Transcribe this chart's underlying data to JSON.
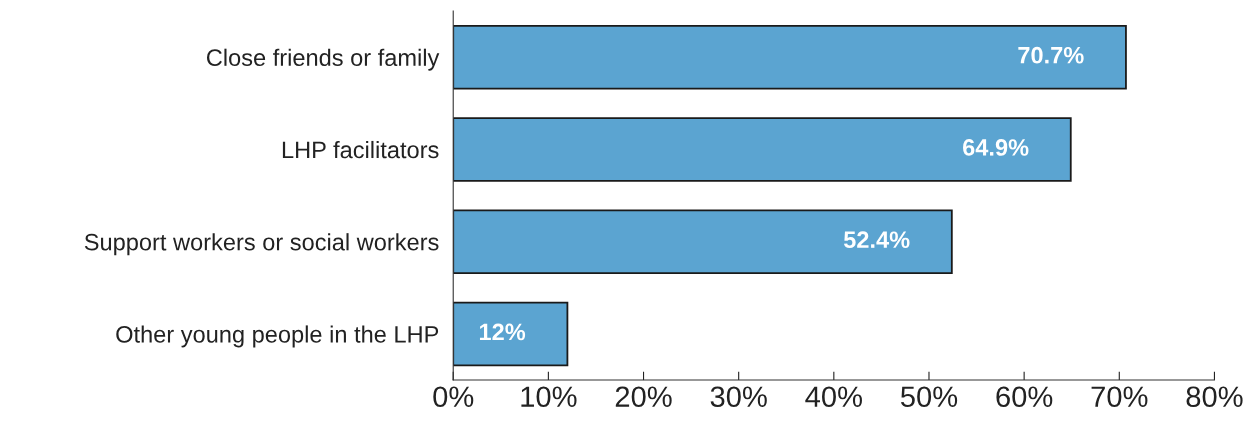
{
  "chart_data": {
    "type": "bar",
    "orientation": "horizontal",
    "categories": [
      "Close friends or family",
      "LHP facilitators",
      "Support workers or social workers",
      "Other young people in the LHP"
    ],
    "values": [
      70.7,
      64.9,
      52.4,
      12
    ],
    "value_labels": [
      "70.7%",
      "64.9%",
      "52.4%",
      "12%"
    ],
    "color": "#5ba4d1",
    "xlim": [
      0,
      80
    ],
    "xticks": [
      {
        "value": 0,
        "label": "0%"
      },
      {
        "value": 10,
        "label": "10%"
      },
      {
        "value": 20,
        "label": "20%"
      },
      {
        "value": 30,
        "label": "30%"
      },
      {
        "value": 40,
        "label": "40%"
      },
      {
        "value": 50,
        "label": "50%"
      },
      {
        "value": 60,
        "label": "60%"
      },
      {
        "value": 70,
        "label": "70%"
      },
      {
        "value": 80,
        "label": "80%"
      }
    ],
    "grid": false,
    "legend": false
  }
}
